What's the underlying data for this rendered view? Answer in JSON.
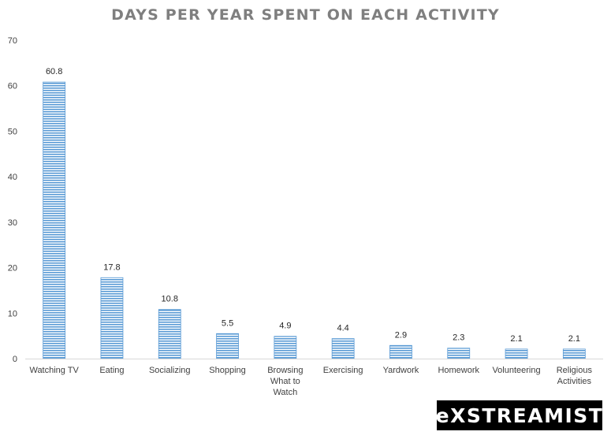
{
  "chart_data": {
    "type": "bar",
    "title": "DAYS PER YEAR SPENT ON EACH ACTIVITY",
    "xlabel": "",
    "ylabel": "",
    "ylim": [
      0,
      70
    ],
    "yticks": [
      0,
      10,
      20,
      30,
      40,
      50,
      60,
      70
    ],
    "categories": [
      [
        "Watching TV"
      ],
      [
        "Eating"
      ],
      [
        "Socializing"
      ],
      [
        "Shopping"
      ],
      [
        "Browsing",
        "What to",
        "Watch"
      ],
      [
        "Exercising"
      ],
      [
        "Yardwork"
      ],
      [
        "Homework"
      ],
      [
        "Volunteering"
      ],
      [
        "Religious",
        "Activities"
      ]
    ],
    "values": [
      60.8,
      17.8,
      10.8,
      5.5,
      4.9,
      4.4,
      2.9,
      2.3,
      2.1,
      2.1
    ],
    "data_labels": [
      "60.8",
      "17.8",
      "10.8",
      "5.5",
      "4.9",
      "4.4",
      "2.9",
      "2.3",
      "2.1",
      "2.1"
    ],
    "grid": false,
    "legend": "none",
    "bar_color": "#5b9bd5",
    "bar_pattern": "horizontal-stripes"
  },
  "brand": {
    "logo_text": "eXSTREAMIST"
  }
}
